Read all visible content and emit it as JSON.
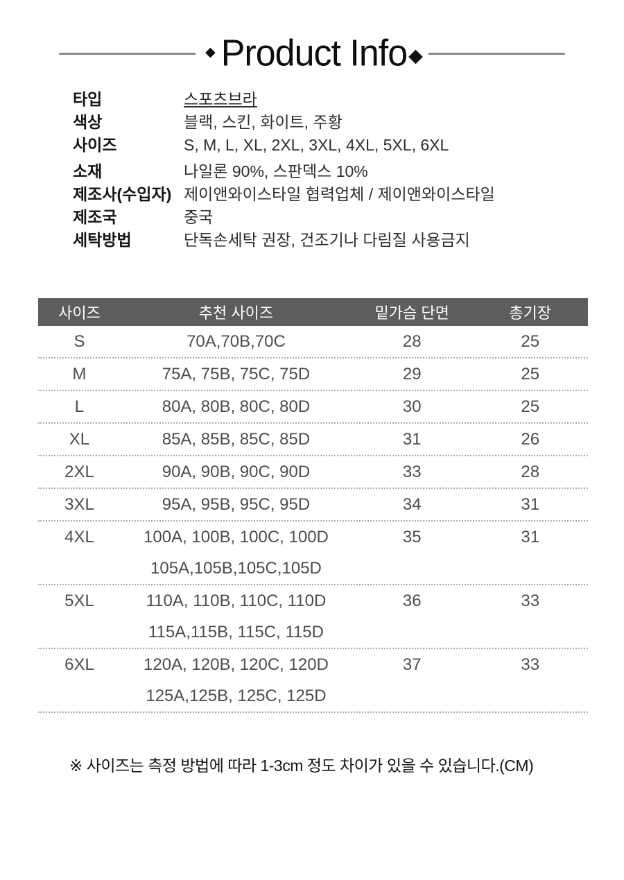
{
  "title": {
    "text": "Product Info",
    "diamond": "◆"
  },
  "info": {
    "rows": [
      {
        "label": "타입",
        "value": "스포츠브라",
        "underline": true
      },
      {
        "label": "색상",
        "value": "블랙, 스킨, 화이트, 주황"
      },
      {
        "label": "사이즈",
        "value": "S, M, L, XL, 2XL, 3XL, 4XL, 5XL, 6XL"
      },
      {
        "label": "소재",
        "value": "나일론 90%, 스판덱스 10%",
        "gap_before": true
      },
      {
        "label": "제조사(수입자)",
        "value": "제이앤와이스타일 협력업체 / 제이앤와이스타일"
      },
      {
        "label": "제조국",
        "value": "중국"
      },
      {
        "label": "세탁방법",
        "value": "단독손세탁 권장, 건조기나 다림질 사용금지"
      }
    ]
  },
  "size_table": {
    "header_bg": "#5d5d5d",
    "headers": [
      "사이즈",
      "추천 사이즈",
      "밑가슴 단면",
      "총기장"
    ],
    "rows": [
      {
        "size": "S",
        "recommended": [
          "70A,70B,70C"
        ],
        "underbust": "28",
        "length": "25"
      },
      {
        "size": "M",
        "recommended": [
          "75A, 75B, 75C, 75D"
        ],
        "underbust": "29",
        "length": "25"
      },
      {
        "size": "L",
        "recommended": [
          "80A, 80B, 80C, 80D"
        ],
        "underbust": "30",
        "length": "25"
      },
      {
        "size": "XL",
        "recommended": [
          "85A, 85B, 85C, 85D"
        ],
        "underbust": "31",
        "length": "26"
      },
      {
        "size": "2XL",
        "recommended": [
          "90A, 90B, 90C, 90D"
        ],
        "underbust": "33",
        "length": "28"
      },
      {
        "size": "3XL",
        "recommended": [
          "95A, 95B, 95C, 95D"
        ],
        "underbust": "34",
        "length": "31"
      },
      {
        "size": "4XL",
        "recommended": [
          "100A, 100B, 100C, 100D",
          "105A,105B,105C,105D"
        ],
        "underbust": "35",
        "length": "31"
      },
      {
        "size": "5XL",
        "recommended": [
          "110A, 110B, 110C, 110D",
          "115A,115B, 115C, 115D"
        ],
        "underbust": "36",
        "length": "33"
      },
      {
        "size": "6XL",
        "recommended": [
          "120A, 120B, 120C, 120D",
          "125A,125B, 125C, 125D"
        ],
        "underbust": "37",
        "length": "33"
      }
    ]
  },
  "footnote": "※ 사이즈는 측정 방법에 따라 1-3cm 정도 차이가 있을 수 있습니다.(CM)"
}
